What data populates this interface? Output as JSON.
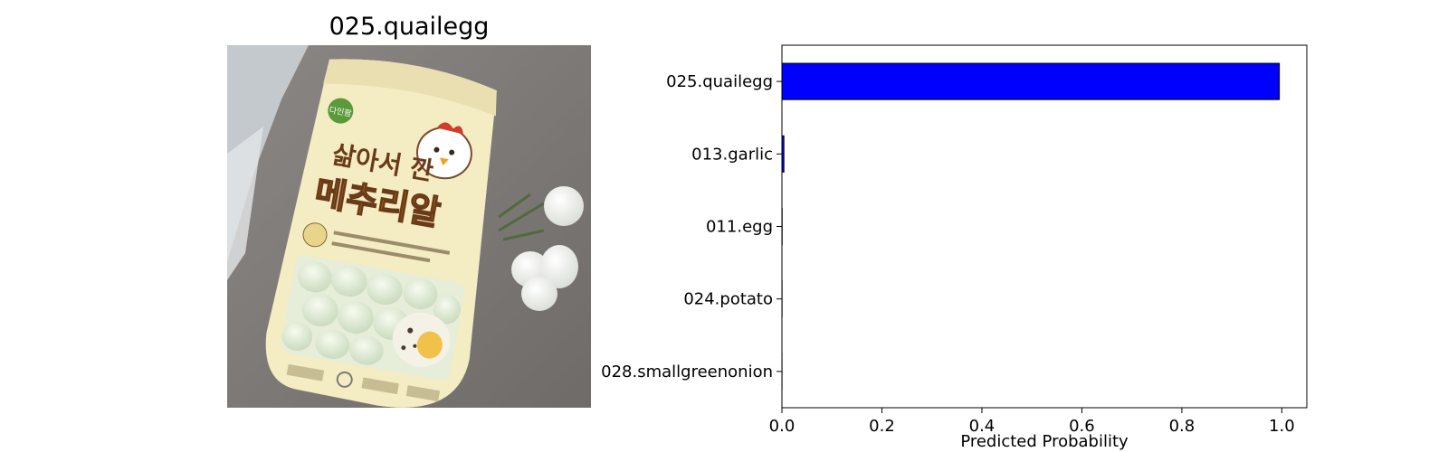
{
  "photo": {
    "title": "025.quailegg",
    "package_text": {
      "brand": "다인팜",
      "line1": "삶아서 깐",
      "line2": "메추리알"
    }
  },
  "chart_data": {
    "type": "bar",
    "orientation": "horizontal",
    "categories": [
      "025.quailegg",
      "013.garlic",
      "011.egg",
      "024.potato",
      "028.smallgreenonion"
    ],
    "values": [
      0.995,
      0.004,
      0.0005,
      0.0003,
      0.0002
    ],
    "xlabel": "Predicted Probability",
    "xlim": [
      0,
      1.05
    ],
    "xticks": [
      "0.0",
      "0.2",
      "0.4",
      "0.6",
      "0.8",
      "1.0"
    ],
    "bar_color": "#0000ff",
    "edge_color": "#000000",
    "grid": false
  }
}
